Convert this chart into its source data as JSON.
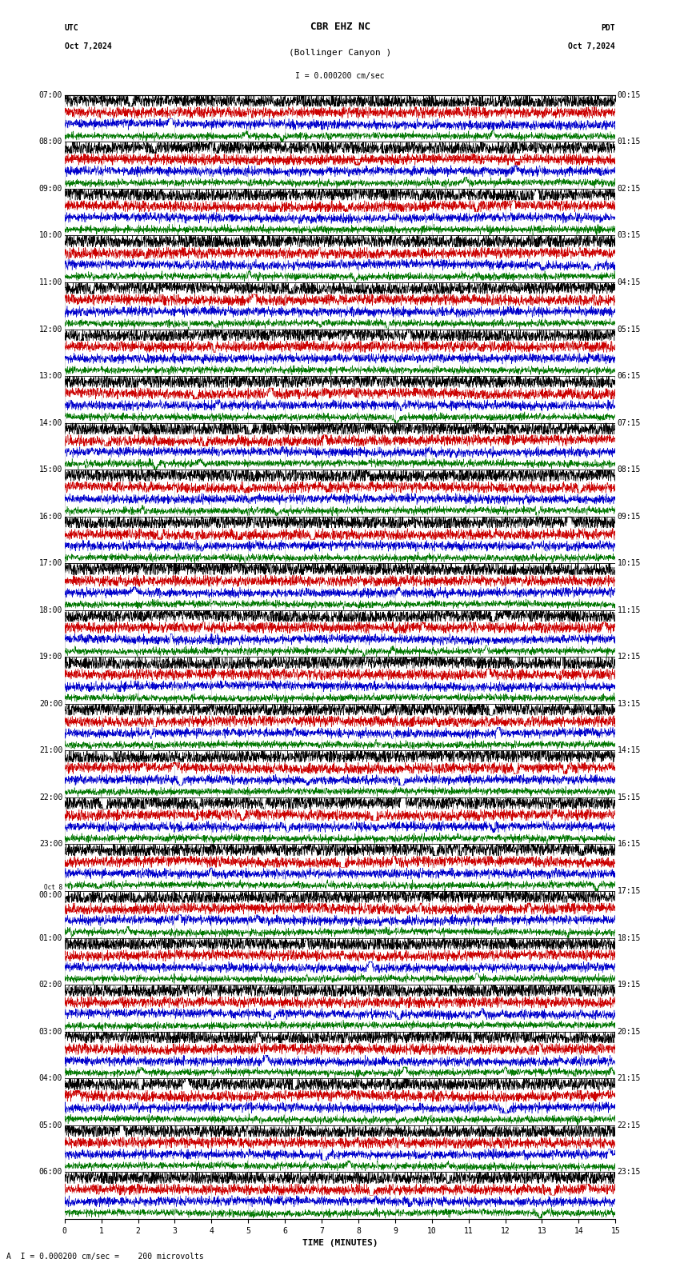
{
  "title_line1": "CBR EHZ NC",
  "title_line2": "(Bollinger Canyon )",
  "scale_text": "I = 0.000200 cm/sec",
  "left_label_line1": "UTC",
  "left_label_line2": "Oct 7,2024",
  "right_label_line1": "PDT",
  "right_label_line2": "Oct 7,2024",
  "bottom_label": "A  I = 0.000200 cm/sec =    200 microvolts",
  "xlabel": "TIME (MINUTES)",
  "bg_color": "#ffffff",
  "grid_color": "#999999",
  "trace_colors": [
    "#000000",
    "#cc0000",
    "#0000cc",
    "#007700"
  ],
  "hour_labels_left": [
    "07:00",
    "08:00",
    "09:00",
    "10:00",
    "11:00",
    "12:00",
    "13:00",
    "14:00",
    "15:00",
    "16:00",
    "17:00",
    "18:00",
    "19:00",
    "20:00",
    "21:00",
    "22:00",
    "23:00",
    "Oct 8\n00:00",
    "01:00",
    "02:00",
    "03:00",
    "04:00",
    "05:00",
    "06:00"
  ],
  "hour_labels_right": [
    "00:15",
    "01:15",
    "02:15",
    "03:15",
    "04:15",
    "05:15",
    "06:15",
    "07:15",
    "08:15",
    "09:15",
    "10:15",
    "11:15",
    "12:15",
    "13:15",
    "14:15",
    "15:15",
    "16:15",
    "17:15",
    "18:15",
    "19:15",
    "20:15",
    "21:15",
    "22:15",
    "23:15"
  ],
  "num_hours": 24,
  "traces_per_hour": 4,
  "xmin": 0,
  "xmax": 15,
  "xticks": [
    0,
    1,
    2,
    3,
    4,
    5,
    6,
    7,
    8,
    9,
    10,
    11,
    12,
    13,
    14,
    15
  ],
  "noise_scale": [
    0.3,
    0.22,
    0.18,
    0.14
  ],
  "font_size_title": 9,
  "font_size_labels": 7,
  "font_size_ticks": 7
}
